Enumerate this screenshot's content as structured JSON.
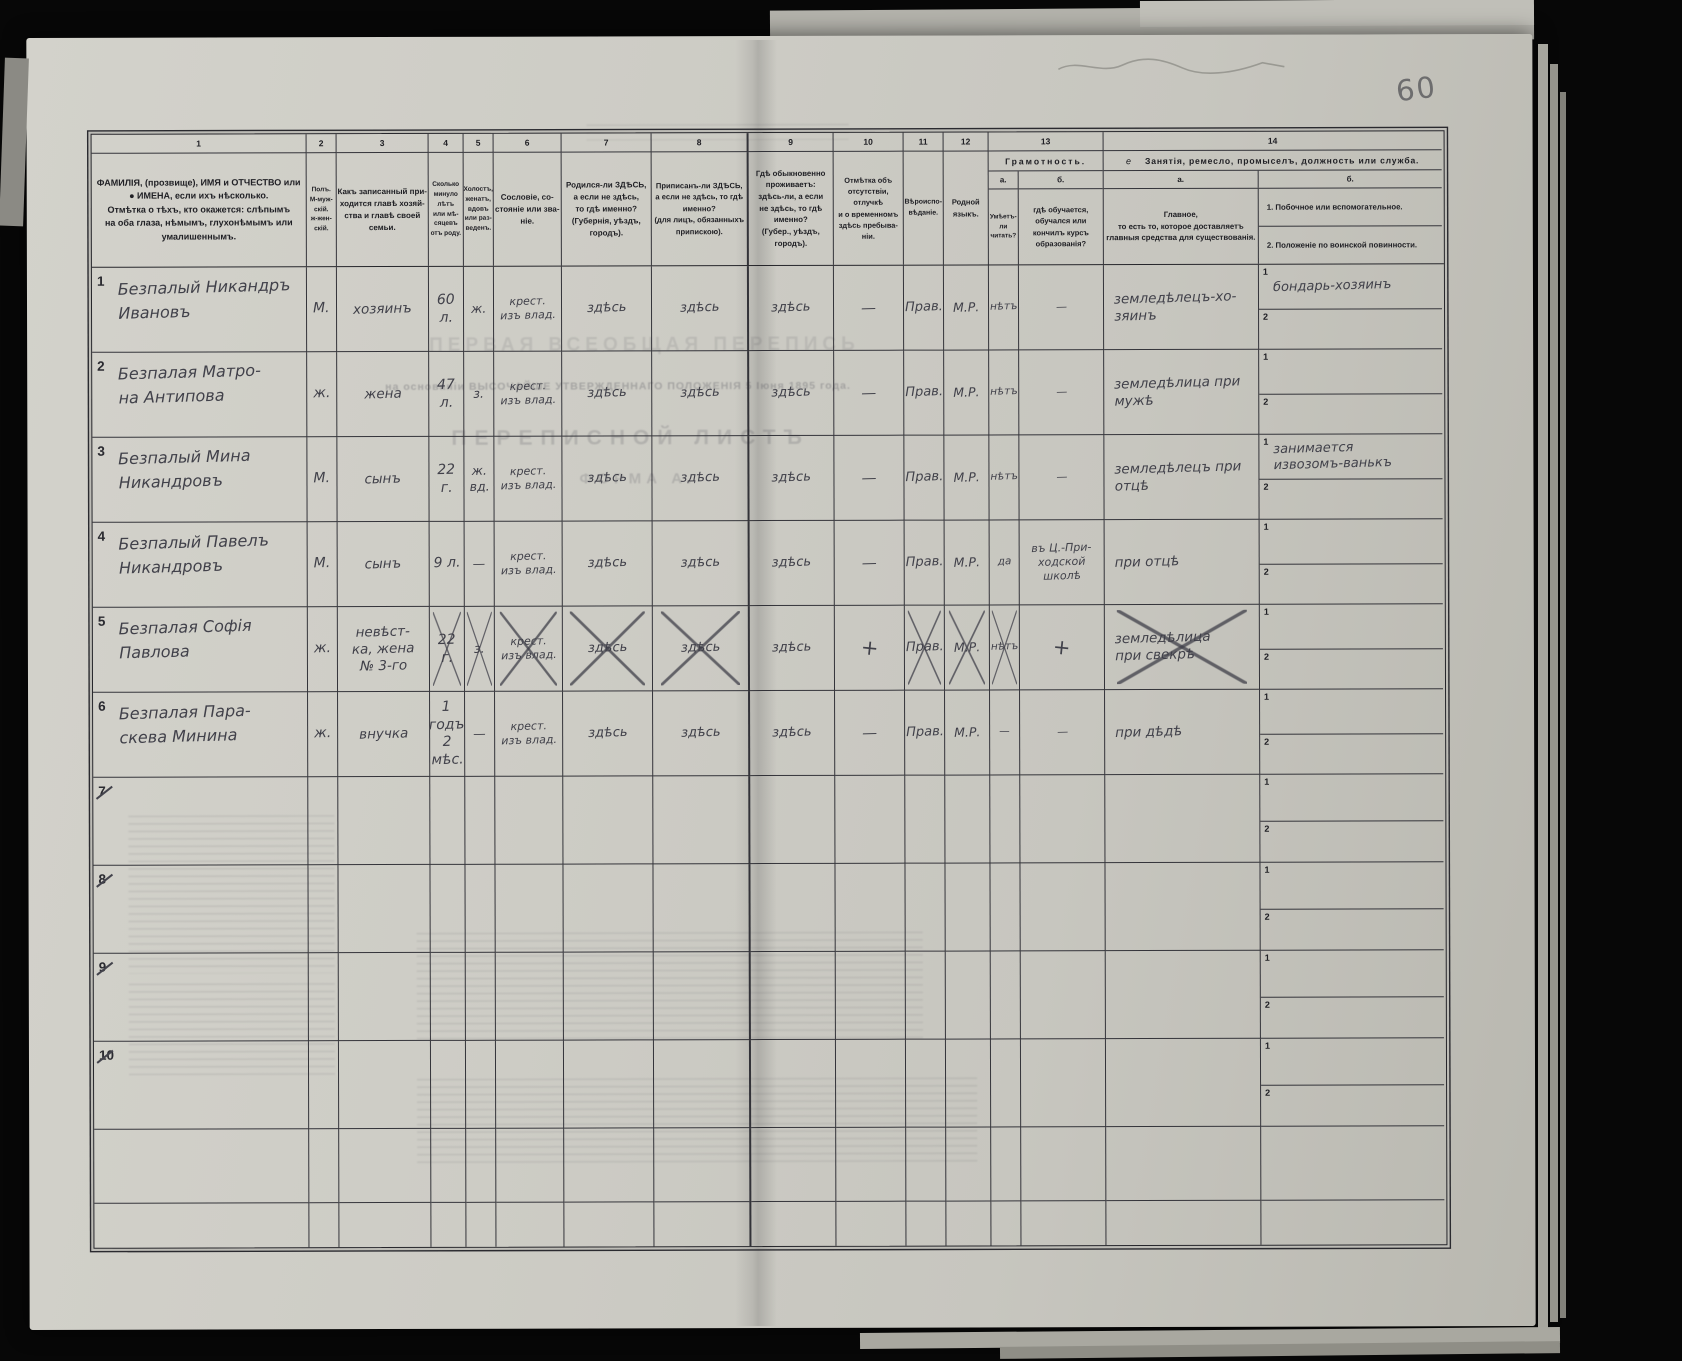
{
  "photo": {
    "folio_number": "60"
  },
  "bleedthrough": {
    "census_title": "ПЕРВАЯ ВСЕОБЩАЯ ПЕРЕПИСЬ",
    "approval_line": "на основаніи ВЫСОЧАЙШЕ УТВЕРЖДЕННАГО ПОЛОЖЕНІЯ 5 Іюня 1895 года.",
    "sheet_title": "ПЕРЕПИСНОЙ ЛИСТЪ",
    "form_label": "ФОРМА А."
  },
  "table": {
    "column_numbers": [
      "1",
      "2",
      "3",
      "4",
      "5",
      "6",
      "7",
      "8",
      "9",
      "10",
      "11",
      "12",
      "13",
      "14"
    ],
    "side_labels": [
      "1",
      "2"
    ],
    "headers": {
      "name": "ФАМИЛІЯ, (прозвище), ИМЯ и ОТЧЕСТВО или\n●   ИМЕНА, если ихъ нѣсколько.\nОтмѣтка о тѣхъ, кто окажется: слѣпымъ\nна оба глаза, нѣмымъ, глухонѣмымъ или\nумалишеннымъ.",
      "sex": "Полъ.\nМ-муж-\nскій.\nж-жен-\nскій.",
      "relation": "Какъ записанный при-\nходится главѣ хозяй-\nства и главѣ своей\nсемьи.",
      "age": "Сколько\nминуло\nлѣтъ\nили мѣ-\nсяцевъ\nотъ роду.",
      "marital": "Холостъ,\nженатъ,\nвдовъ\nили раз-\nведенъ.",
      "estate": "Сословіе, со-\nстояніе или зва-\nніе.",
      "born": "Родился-ли ЗДѢСЬ,\nа если не здѣсь,\nто гдѣ именно?\n(Губернія, уѣздъ, городъ).",
      "registered": "Приписанъ-ли ЗДѢСЬ,\nа если не здѣсь, то гдѣ\nименно?\n(для лицъ, обязанныхъ\nприпискою).",
      "residence": "Гдѣ обыкновенно\nпроживаетъ:\nздѣсь-ли, а если\nне здѣсь, то гдѣ\nименно?\n(Губер., уѣздъ, городъ).",
      "absence": "Отмѣтка объ\nотсутствіи, отлучкѣ\nи о временномъ\nздѣсь пребыва-\nніи.",
      "religion": "Вѣроиспо-\nвѣданіе.",
      "language": "Родной\nязыкъ.",
      "literacy": {
        "title": "Грамотность.",
        "a_label": "а.",
        "b_label": "б.",
        "read": "Умѣетъ-\nли\nчитать?",
        "edu": "гдѣ обучается,\nобучался или\nкончилъ курсъ\nобразованія?"
      },
      "occupation": {
        "mark": "е",
        "title": "Занятія, ремесло, промыселъ, должность или служба.",
        "a_label": "а.",
        "b_label": "б.",
        "main": "Главное,\nто есть то, которое доставляетъ\nглавныя средства для существованія.",
        "side1": "1.  Побочное или вспомогательное.",
        "side2": "2.  Положеніе по воинской повинности."
      }
    },
    "rows": [
      {
        "num": "1",
        "num_struck": false,
        "name": "Безпалый Никандръ\nИвановъ",
        "sex": "М.",
        "relation": "хозяинъ",
        "age": "60 л.",
        "marital": "ж.",
        "estate": "крест.\nизъ влад.",
        "born": "здѣсь",
        "registered": "здѣсь",
        "residence": "здѣсь",
        "absence": "—",
        "religion": "Прав.",
        "language": "М.Р.",
        "read": "нѣтъ",
        "edu": "—",
        "occ_main": "земледѣлецъ-хо-\nзяинъ",
        "occ_side1": "бондарь-хозяинъ",
        "occ_side2": "",
        "struck": []
      },
      {
        "num": "2",
        "num_struck": false,
        "name": "Безпалая Матро-\nна Антипова",
        "sex": "ж.",
        "relation": "жена",
        "age": "47 л.",
        "marital": "з.",
        "estate": "крест.\nизъ влад.",
        "born": "здѣсь",
        "registered": "здѣсь",
        "residence": "здѣсь",
        "absence": "—",
        "religion": "Прав.",
        "language": "М.Р.",
        "read": "нѣтъ",
        "edu": "—",
        "occ_main": "земледѣлица при\nмужѣ",
        "occ_side1": "",
        "occ_side2": "",
        "struck": []
      },
      {
        "num": "3",
        "num_struck": false,
        "name": "Безпалый Мина\nНикандровъ",
        "sex": "М.",
        "relation": "сынъ",
        "age": "22 г.",
        "marital": "ж.\nвд.",
        "estate": "крест.\nизъ влад.",
        "born": "здѣсь",
        "registered": "здѣсь",
        "residence": "здѣсь",
        "absence": "—",
        "religion": "Прав.",
        "language": "М.Р.",
        "read": "нѣтъ",
        "edu": "—",
        "occ_main": "земледѣлецъ при\nотцѣ",
        "occ_side1": "занимается\nизвозомъ-ванькъ",
        "occ_side2": "",
        "struck": []
      },
      {
        "num": "4",
        "num_struck": false,
        "name": "Безпалый Павелъ\nНикандровъ",
        "sex": "М.",
        "relation": "сынъ",
        "age": "9 л.",
        "marital": "—",
        "estate": "крест.\nизъ влад.",
        "born": "здѣсь",
        "registered": "здѣсь",
        "residence": "здѣсь",
        "absence": "—",
        "religion": "Прав.",
        "language": "М.Р.",
        "read": "да",
        "edu": "въ Ц.-При-\nходской\nшколѣ",
        "occ_main": "при отцѣ",
        "occ_side1": "",
        "occ_side2": "",
        "struck": []
      },
      {
        "num": "5",
        "num_struck": false,
        "name": "Безпалая Софія\nПавлова",
        "sex": "ж.",
        "relation": "невѣст-\nка, жена\n№ 3-го",
        "age": "22 г.",
        "marital": "з.",
        "estate": "крест.\nизъ влад.",
        "born": "здѣсь",
        "registered": "здѣсь",
        "residence": "здѣсь",
        "absence": "+",
        "religion": "Прав.",
        "language": "М.Р.",
        "read": "нѣтъ",
        "edu": "+",
        "occ_main": "земледѣлица\nпри свекрѣ",
        "occ_side1": "",
        "occ_side2": "",
        "struck": [
          "age",
          "marital",
          "estate",
          "born",
          "registered",
          "religion",
          "language",
          "read",
          "occ_main"
        ]
      },
      {
        "num": "6",
        "num_struck": false,
        "name": "Безпалая Пара-\nскева Минина",
        "sex": "ж.",
        "relation": "внучка",
        "age": "1 годъ\n2 мѣс.",
        "marital": "—",
        "estate": "крест.\nизъ влад.",
        "born": "здѣсь",
        "registered": "здѣсь",
        "residence": "здѣсь",
        "absence": "—",
        "religion": "Прав.",
        "language": "М.Р.",
        "read": "—",
        "edu": "—",
        "occ_main": "при дѣдѣ",
        "occ_side1": "",
        "occ_side2": "",
        "struck": []
      },
      {
        "num": "7",
        "num_struck": true,
        "name": "",
        "sex": "",
        "relation": "",
        "age": "",
        "marital": "",
        "estate": "",
        "born": "",
        "registered": "",
        "residence": "",
        "absence": "",
        "religion": "",
        "language": "",
        "read": "",
        "edu": "",
        "occ_main": "",
        "occ_side1": "",
        "occ_side2": "",
        "struck": []
      },
      {
        "num": "8",
        "num_struck": true,
        "name": "",
        "sex": "",
        "relation": "",
        "age": "",
        "marital": "",
        "estate": "",
        "born": "",
        "registered": "",
        "residence": "",
        "absence": "",
        "religion": "",
        "language": "",
        "read": "",
        "edu": "",
        "occ_main": "",
        "occ_side1": "",
        "occ_side2": "",
        "struck": []
      },
      {
        "num": "9",
        "num_struck": true,
        "name": "",
        "sex": "",
        "relation": "",
        "age": "",
        "marital": "",
        "estate": "",
        "born": "",
        "registered": "",
        "residence": "",
        "absence": "",
        "religion": "",
        "language": "",
        "read": "",
        "edu": "",
        "occ_main": "",
        "occ_side1": "",
        "occ_side2": "",
        "struck": []
      },
      {
        "num": "10",
        "num_struck": true,
        "name": "",
        "sex": "",
        "relation": "",
        "age": "",
        "marital": "",
        "estate": "",
        "born": "",
        "registered": "",
        "residence": "",
        "absence": "",
        "religion": "",
        "language": "",
        "read": "",
        "edu": "",
        "occ_main": "",
        "occ_side1": "",
        "occ_side2": "",
        "struck": []
      }
    ]
  }
}
